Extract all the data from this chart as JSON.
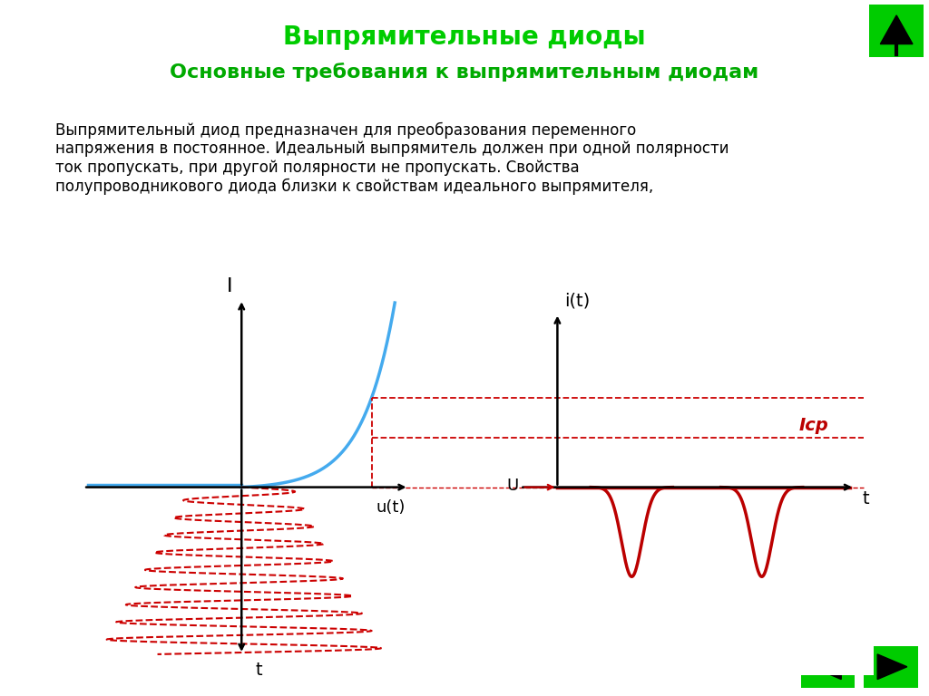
{
  "title": "Выпрямительные диоды",
  "subtitle": "Основные требования к выпрямительным диодам",
  "body_text": "Выпрямительный диод предназначен для преобразования переменного\nнапряжения в постоянное. Идеальный выпрямитель должен при одной полярности\nток пропускать, при другой полярности не пропускать. Свойства\nполупроводникового диода близки к свойствам идеального выпрямителя,",
  "title_color": "#00cc00",
  "subtitle_color": "#00aa00",
  "body_color": "#000000",
  "bg_color": "#ffffff",
  "diode_curve_color": "#44aaee",
  "signal_color": "#bb0000",
  "axis_color": "#000000",
  "dashed_color": "#cc0000",
  "green_btn_color": "#00cc00",
  "title_fontsize": 20,
  "subtitle_fontsize": 16,
  "body_fontsize": 12
}
